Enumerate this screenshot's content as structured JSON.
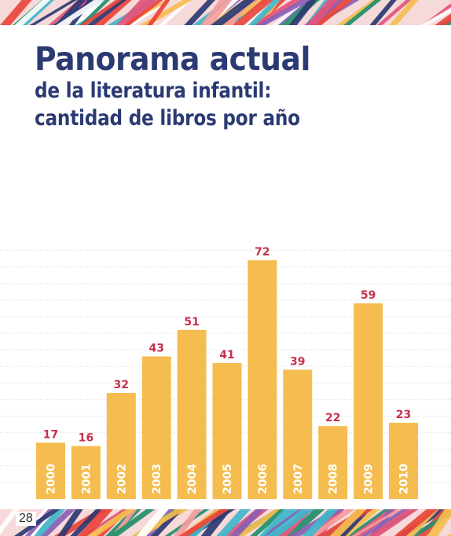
{
  "title": {
    "main": "Panorama actual",
    "line2": "de la literatura infantil:",
    "line3": "cantidad de libros por año"
  },
  "page_number": "28",
  "colors": {
    "bar": "#f5bd4f",
    "value_label": "#c6304b",
    "title": "#2b3a72",
    "year_label": "#ffffff",
    "grid": "#dcdcdc"
  },
  "chart_data": {
    "type": "bar",
    "title": "Panorama actual de la literatura infantil: cantidad de libros por año",
    "categories": [
      "2000",
      "2001",
      "2002",
      "2003",
      "2004",
      "2005",
      "2006",
      "2007",
      "2008",
      "2009",
      "2010"
    ],
    "values": [
      17,
      16,
      32,
      43,
      51,
      41,
      72,
      39,
      22,
      59,
      23
    ],
    "xlabel": "",
    "ylabel": "",
    "ylim": [
      0,
      80
    ],
    "grid": true,
    "data_labels": true,
    "category_label_position": "inside-bar-bottom-vertical"
  }
}
